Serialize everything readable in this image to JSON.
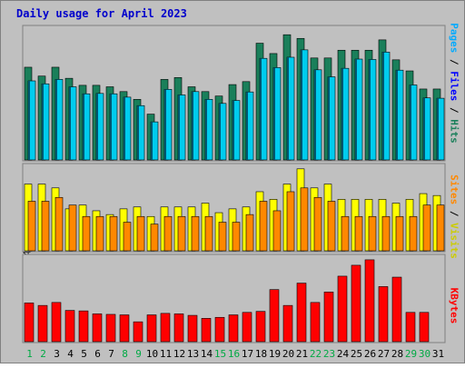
{
  "chart_data": [
    {
      "type": "bar",
      "title": "Daily usage for April 2023",
      "categories": [
        "1",
        "2",
        "3",
        "4",
        "5",
        "6",
        "7",
        "8",
        "9",
        "10",
        "11",
        "12",
        "13",
        "14",
        "15",
        "16",
        "17",
        "18",
        "19",
        "20",
        "21",
        "22",
        "23",
        "24",
        "25",
        "26",
        "27",
        "28",
        "29",
        "30",
        "31"
      ],
      "weekend_days": [
        "1",
        "2",
        "8",
        "9",
        "15",
        "16",
        "22",
        "23",
        "29",
        "30"
      ],
      "ymax_label": "35670",
      "ylim": [
        0,
        35670
      ],
      "legend": [
        "Pages",
        "Files",
        "Hits"
      ],
      "series": [
        {
          "name": "Hits",
          "color": "#1a7f5a",
          "values": [
            25100,
            22700,
            25100,
            22100,
            20200,
            20200,
            19800,
            18500,
            16400,
            12400,
            21800,
            22300,
            19800,
            18500,
            17300,
            20400,
            21200,
            31600,
            28800,
            33900,
            32900,
            27600,
            27600,
            29700,
            29700,
            29700,
            32500,
            27100,
            24100,
            19200,
            19200
          ]
        },
        {
          "name": "Files",
          "color": "#00ccee",
          "values": [
            21400,
            20600,
            21800,
            19800,
            17900,
            18000,
            17900,
            17000,
            14700,
            10300,
            19100,
            17600,
            18500,
            16400,
            15300,
            16100,
            18400,
            27500,
            25000,
            27800,
            29800,
            24400,
            22500,
            24800,
            27300,
            27200,
            29200,
            24300,
            20300,
            16800,
            16700
          ]
        },
        {
          "name": "Pages",
          "color": "#005670",
          "values": [
            21400,
            20600,
            21800,
            19800,
            17900,
            18000,
            17900,
            17000,
            14700,
            10300,
            19100,
            17600,
            18500,
            16400,
            15300,
            16100,
            18400,
            27500,
            25000,
            27800,
            29800,
            24400,
            22500,
            24800,
            27300,
            27200,
            29200,
            24300,
            20300,
            16800,
            16700
          ]
        }
      ]
    },
    {
      "type": "bar",
      "ymax_label": "4434",
      "ylim": [
        0,
        4434
      ],
      "legend": [
        "Sites",
        "Visits"
      ],
      "series": [
        {
          "name": "Visits",
          "color": "#ffff00",
          "values": [
            3500,
            3500,
            3300,
            2200,
            2400,
            2100,
            1900,
            2200,
            2300,
            1800,
            2300,
            2300,
            2300,
            2500,
            2000,
            2200,
            2300,
            3100,
            2700,
            3500,
            4300,
            3300,
            3500,
            2700,
            2700,
            2700,
            2700,
            2500,
            2700,
            3000,
            2900
          ]
        },
        {
          "name": "Sites",
          "color": "#ff8800",
          "values": [
            2600,
            2600,
            2800,
            2400,
            1800,
            1800,
            1800,
            1500,
            1800,
            1400,
            1800,
            1800,
            1800,
            1800,
            1500,
            1500,
            1900,
            2600,
            2100,
            3100,
            3300,
            2800,
            2600,
            1800,
            1800,
            1800,
            1800,
            1800,
            1800,
            2400,
            2400
          ]
        }
      ]
    },
    {
      "type": "bar",
      "ymax_label": "1703374",
      "ylim": [
        0,
        1703374
      ],
      "legend": [
        "KBytes"
      ],
      "series": [
        {
          "name": "KBytes",
          "color": "#ff0000",
          "values": [
            780000,
            730000,
            790000,
            630000,
            620000,
            560000,
            550000,
            540000,
            400000,
            540000,
            570000,
            560000,
            530000,
            470000,
            490000,
            540000,
            590000,
            610000,
            1050000,
            730000,
            1180000,
            790000,
            1000000,
            1320000,
            1540000,
            1650000,
            1110000,
            1300000,
            590000,
            590000,
            0
          ]
        }
      ]
    }
  ],
  "colors": {
    "background": "#c0c0c0",
    "title": "#0000cc",
    "weekday_label": "#000000",
    "weekend_label": "#00aa44",
    "legend_pages": "#00aaff",
    "legend_files": "#0000ff",
    "legend_hits": "#1a7f5a",
    "legend_sites": "#ff8800",
    "legend_visits": "#cccc00",
    "legend_kbytes": "#ff0000"
  }
}
